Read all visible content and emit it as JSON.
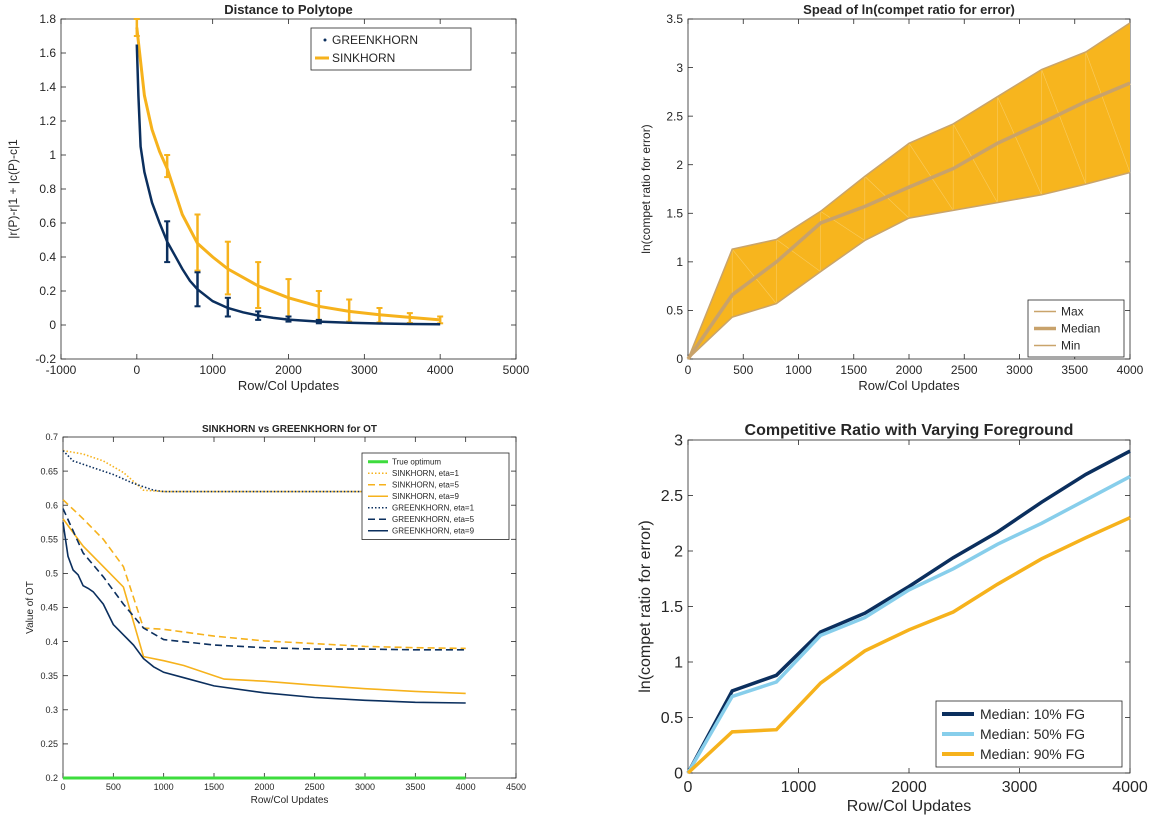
{
  "chart_data": [
    {
      "type": "line",
      "title": "Distance to Polytope",
      "xlabel": "Row/Col Updates",
      "ylabel": "|r(P)-r|1 + |c(P)-c|1",
      "xlim": [
        -1000,
        5000
      ],
      "ylim": [
        -0.2,
        1.8
      ],
      "xticks": [
        "-1000",
        "0",
        "1000",
        "2000",
        "3000",
        "4000",
        "5000"
      ],
      "yticks": [
        "-0.2",
        "0",
        "0.2",
        "0.4",
        "0.6",
        "0.8",
        "1",
        "1.2",
        "1.4",
        "1.6",
        "1.8"
      ],
      "legend": [
        "GREENKHORN",
        "SINKHORN"
      ],
      "legend_position": "top-right",
      "colors": {
        "greenkhorn": "#0b2f5e",
        "sinkhorn": "#f6b21c"
      },
      "series": [
        {
          "name": "GREENKHORN",
          "x": [
            0,
            20,
            50,
            100,
            200,
            300,
            400,
            500,
            600,
            700,
            800,
            1000,
            1200,
            1400,
            1600,
            1800,
            2000,
            2400,
            2800,
            3200,
            3600,
            4000
          ],
          "values": [
            1.65,
            1.35,
            1.05,
            0.9,
            0.72,
            0.6,
            0.49,
            0.41,
            0.33,
            0.26,
            0.21,
            0.14,
            0.1,
            0.075,
            0.055,
            0.042,
            0.032,
            0.02,
            0.013,
            0.009,
            0.006,
            0.004
          ],
          "error_x": [
            400,
            800,
            1200,
            1600,
            2000,
            2400
          ],
          "error_low": [
            0.37,
            0.11,
            0.05,
            0.03,
            0.02,
            0.01
          ],
          "error_high": [
            0.61,
            0.31,
            0.16,
            0.08,
            0.05,
            0.03
          ]
        },
        {
          "name": "SINKHORN",
          "x": [
            0,
            100,
            200,
            300,
            400,
            600,
            800,
            1000,
            1200,
            1600,
            2000,
            2400,
            2800,
            3200,
            3600,
            4000
          ],
          "values": [
            1.75,
            1.35,
            1.15,
            1.02,
            0.92,
            0.65,
            0.48,
            0.4,
            0.33,
            0.23,
            0.16,
            0.11,
            0.08,
            0.06,
            0.045,
            0.03
          ],
          "error_x": [
            0,
            400,
            800,
            1200,
            1600,
            2000,
            2400,
            2800,
            3200,
            3600,
            4000
          ],
          "error_low": [
            1.7,
            0.87,
            0.32,
            0.18,
            0.1,
            0.05,
            0.03,
            0.02,
            0.015,
            0.012,
            0.01
          ],
          "error_high": [
            1.8,
            1.0,
            0.65,
            0.49,
            0.37,
            0.27,
            0.2,
            0.15,
            0.1,
            0.07,
            0.05
          ]
        }
      ]
    },
    {
      "type": "area",
      "title": "Spead of ln(compet ratio for error)",
      "xlabel": "Row/Col Updates",
      "ylabel": "ln(compet ratio for error)",
      "xlim": [
        0,
        4000
      ],
      "ylim": [
        0,
        3.5
      ],
      "xticks": [
        "0",
        "500",
        "1000",
        "1500",
        "2000",
        "2500",
        "3000",
        "3500",
        "4000"
      ],
      "yticks": [
        "0",
        "0.5",
        "1",
        "1.5",
        "2",
        "2.5",
        "3",
        "3.5"
      ],
      "legend": [
        "Max",
        "Median",
        "Min"
      ],
      "legend_position": "bottom-right",
      "colors": {
        "fill": "#f7b51e",
        "line": "#c9a46b",
        "median": "#c8a26b"
      },
      "x": [
        0,
        400,
        800,
        1200,
        1600,
        2000,
        2400,
        2800,
        3200,
        3600,
        4000
      ],
      "series": [
        {
          "name": "Max",
          "values": [
            0,
            1.13,
            1.23,
            1.52,
            1.88,
            2.22,
            2.42,
            2.7,
            2.98,
            3.16,
            3.46
          ]
        },
        {
          "name": "Median",
          "values": [
            0,
            0.66,
            1.0,
            1.4,
            1.57,
            1.77,
            1.96,
            2.22,
            2.43,
            2.65,
            2.84
          ]
        },
        {
          "name": "Min",
          "values": [
            0,
            0.43,
            0.57,
            0.9,
            1.22,
            1.45,
            1.53,
            1.61,
            1.69,
            1.8,
            1.92
          ]
        }
      ]
    },
    {
      "type": "line",
      "title": "SINKHORN vs GREENKHORN for OT",
      "xlabel": "Row/Col Updates",
      "ylabel": "Value of OT",
      "xlim": [
        0,
        4500
      ],
      "ylim": [
        0.2,
        0.7
      ],
      "xticks": [
        "0",
        "500",
        "1000",
        "1500",
        "2000",
        "2500",
        "3000",
        "3500",
        "4000",
        "4500"
      ],
      "yticks": [
        "0.2",
        "0.25",
        "0.3",
        "0.35",
        "0.4",
        "0.45",
        "0.5",
        "0.55",
        "0.6",
        "0.65",
        "0.7"
      ],
      "legend": [
        "True optimum",
        "SINKHORN, eta=1",
        "SINKHORN, eta=5",
        "SINKHORN, eta=9",
        "GREENKHORN, eta=1",
        "GREENKHORN, eta=5",
        "GREENKHORN, eta=9"
      ],
      "legend_position": "top-right",
      "series": [
        {
          "name": "True optimum",
          "color": "#3ddc3d",
          "dash": "solid",
          "x": [
            0,
            4000
          ],
          "values": [
            0.2,
            0.2
          ]
        },
        {
          "name": "SINKHORN, eta=1",
          "color": "#f6b21c",
          "dash": "dotted",
          "x": [
            0,
            200,
            400,
            600,
            800,
            1000,
            1500,
            2000,
            4000
          ],
          "values": [
            0.68,
            0.675,
            0.665,
            0.648,
            0.622,
            0.62,
            0.62,
            0.62,
            0.62
          ]
        },
        {
          "name": "SINKHORN, eta=5",
          "color": "#f6b21c",
          "dash": "dashed",
          "x": [
            0,
            200,
            400,
            600,
            800,
            1000,
            1500,
            2000,
            2500,
            3000,
            3500,
            4000
          ],
          "values": [
            0.608,
            0.58,
            0.55,
            0.51,
            0.42,
            0.418,
            0.408,
            0.401,
            0.397,
            0.393,
            0.391,
            0.39
          ]
        },
        {
          "name": "SINKHORN, eta=9",
          "color": "#f6b21c",
          "dash": "solid",
          "x": [
            0,
            200,
            400,
            600,
            800,
            1000,
            1200,
            1600,
            2000,
            2500,
            3000,
            3500,
            4000
          ],
          "values": [
            0.58,
            0.54,
            0.51,
            0.48,
            0.378,
            0.372,
            0.365,
            0.345,
            0.342,
            0.336,
            0.331,
            0.327,
            0.324
          ]
        },
        {
          "name": "GREENKHORN, eta=1",
          "color": "#0b2f5e",
          "dash": "dotted",
          "x": [
            0,
            100,
            300,
            500,
            700,
            900,
            1000,
            1500,
            2000,
            4000
          ],
          "values": [
            0.68,
            0.665,
            0.655,
            0.645,
            0.632,
            0.622,
            0.62,
            0.62,
            0.62,
            0.62
          ]
        },
        {
          "name": "GREENKHORN, eta=5",
          "color": "#0b2f5e",
          "dash": "dashed",
          "x": [
            0,
            200,
            400,
            600,
            800,
            1000,
            1500,
            2000,
            2500,
            3000,
            3500,
            4000
          ],
          "values": [
            0.595,
            0.53,
            0.495,
            0.455,
            0.42,
            0.403,
            0.395,
            0.391,
            0.389,
            0.389,
            0.388,
            0.388
          ]
        },
        {
          "name": "GREENKHORN, eta=9",
          "color": "#0b2f5e",
          "dash": "solid",
          "x": [
            0,
            50,
            100,
            150,
            200,
            250,
            300,
            400,
            500,
            600,
            700,
            800,
            900,
            1000,
            1200,
            1500,
            2000,
            2500,
            3000,
            3500,
            4000
          ],
          "values": [
            0.575,
            0.525,
            0.505,
            0.498,
            0.482,
            0.478,
            0.473,
            0.455,
            0.425,
            0.41,
            0.395,
            0.375,
            0.363,
            0.355,
            0.347,
            0.335,
            0.325,
            0.318,
            0.314,
            0.311,
            0.31
          ]
        }
      ]
    },
    {
      "type": "line",
      "title": "Competitive Ratio with Varying Foreground",
      "xlabel": "Row/Col Updates",
      "ylabel": "ln(compet ratio for error)",
      "xlim": [
        0,
        4000
      ],
      "ylim": [
        0,
        3
      ],
      "xticks": [
        "0",
        "1000",
        "2000",
        "3000",
        "4000"
      ],
      "yticks": [
        "0",
        "0.5",
        "1",
        "1.5",
        "2",
        "2.5",
        "3"
      ],
      "legend": [
        "Median: 10% FG",
        "Median: 50% FG",
        "Median: 90% FG"
      ],
      "legend_position": "bottom-right",
      "x": [
        0,
        400,
        800,
        1200,
        1600,
        2000,
        2400,
        2800,
        3200,
        3600,
        4000
      ],
      "series": [
        {
          "name": "Median: 10% FG",
          "color": "#0b2f5e",
          "values": [
            0,
            0.74,
            0.88,
            1.27,
            1.44,
            1.68,
            1.94,
            2.17,
            2.44,
            2.69,
            2.9
          ]
        },
        {
          "name": "Median: 50% FG",
          "color": "#87ceeb",
          "values": [
            0,
            0.69,
            0.82,
            1.24,
            1.4,
            1.65,
            1.84,
            2.06,
            2.25,
            2.46,
            2.67
          ]
        },
        {
          "name": "Median: 90% FG",
          "color": "#f6b21c",
          "values": [
            0,
            0.37,
            0.39,
            0.81,
            1.1,
            1.29,
            1.45,
            1.7,
            1.93,
            2.12,
            2.3
          ]
        }
      ]
    }
  ]
}
